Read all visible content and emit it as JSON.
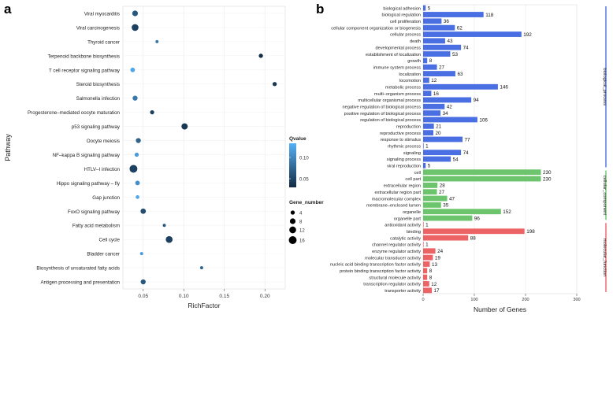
{
  "chart_data": [
    {
      "panel": "a",
      "type": "scatter",
      "xlabel": "RichFactor",
      "ylabel": "Pathway",
      "xlim": [
        0.025,
        0.225
      ],
      "xticks": [
        0.05,
        0.1,
        0.15,
        0.2
      ],
      "xtick_labels": [
        "0.05",
        "0.10",
        "0.15",
        "0.20"
      ],
      "legend_color": {
        "title": "Qvalue",
        "ticks": [
          "0.10",
          "0.05"
        ],
        "colors": [
          "#56B1F7",
          "#132B43"
        ]
      },
      "legend_size": {
        "title": "Gene_number",
        "labels": [
          "4",
          "8",
          "12",
          "16"
        ],
        "values": [
          4,
          8,
          12,
          16
        ]
      },
      "pathways": [
        "Viral myocarditis",
        "Viral carcinogenesis",
        "Thyroid cancer",
        "Terpenoid backbone biosynthesis",
        "T cell receptor signaling pathway",
        "Steroid biosynthesis",
        "Salmonella infection",
        "Progesterone–mediated oocyte maturation",
        "p53 signaling pathway",
        "Oocyte meiosis",
        "NF–kappa B signaling pathway",
        "HTLV–I infection",
        "Hippo signaling pathway – fly",
        "Gap junction",
        "FoxO signaling pathway",
        "Fatty acid metabolism",
        "Cell cycle",
        "Bladder cancer",
        "Biosynthesis of unsaturated fatty acids",
        "Antigen processing and presentation"
      ],
      "points": [
        {
          "x": 0.04,
          "genes": 8,
          "q": 0.05
        },
        {
          "x": 0.04,
          "genes": 12,
          "q": 0.03
        },
        {
          "x": 0.067,
          "genes": 2,
          "q": 0.08
        },
        {
          "x": 0.195,
          "genes": 4,
          "q": 0.01
        },
        {
          "x": 0.037,
          "genes": 5,
          "q": 0.12
        },
        {
          "x": 0.212,
          "genes": 4,
          "q": 0.02
        },
        {
          "x": 0.04,
          "genes": 6,
          "q": 0.08
        },
        {
          "x": 0.061,
          "genes": 4,
          "q": 0.03
        },
        {
          "x": 0.101,
          "genes": 10,
          "q": 0.02
        },
        {
          "x": 0.044,
          "genes": 6,
          "q": 0.06
        },
        {
          "x": 0.042,
          "genes": 4,
          "q": 0.11
        },
        {
          "x": 0.038,
          "genes": 16,
          "q": 0.03
        },
        {
          "x": 0.043,
          "genes": 5,
          "q": 0.1
        },
        {
          "x": 0.043,
          "genes": 3,
          "q": 0.12
        },
        {
          "x": 0.05,
          "genes": 7,
          "q": 0.04
        },
        {
          "x": 0.076,
          "genes": 2,
          "q": 0.05
        },
        {
          "x": 0.082,
          "genes": 12,
          "q": 0.03
        },
        {
          "x": 0.048,
          "genes": 2,
          "q": 0.11
        },
        {
          "x": 0.122,
          "genes": 2,
          "q": 0.06
        },
        {
          "x": 0.05,
          "genes": 6,
          "q": 0.05
        }
      ]
    },
    {
      "panel": "b",
      "type": "bar",
      "orientation": "horizontal",
      "xlabel": "Number of Genes",
      "xlim": [
        0,
        300
      ],
      "xticks": [
        0,
        100,
        200,
        300
      ],
      "xtick_labels": [
        "0",
        "100",
        "200",
        "300"
      ],
      "categories": [
        "biological adhesion",
        "biological regulation",
        "cell proliferation",
        "cellular component organization or biogenesis",
        "cellular process",
        "death",
        "developmental process",
        "establishment of localization",
        "growth",
        "immune system process",
        "localization",
        "locomotion",
        "metabolic process",
        "multi–organism process",
        "multicellular organismal process",
        "negative regulation of biological process",
        "positive regulation of biological process",
        "regulation of biological process",
        "reproduction",
        "reproductive process",
        "response to stimulus",
        "rhythmic process",
        "signaling",
        "signaling process",
        "viral reproduction",
        "cell",
        "cell part",
        "extracellular region",
        "extracellular region part",
        "macromolecular complex",
        "membrane–enclosed lumen",
        "organelle",
        "organelle part",
        "antioxidant activity",
        "binding",
        "catalytic activity",
        "channel regulator activity",
        "enzyme regulator activity",
        "molecular transducer activity",
        "nucleic acid binding transcription factor activity",
        "protein binding transcription factor activity",
        "structural molecule activity",
        "transcription regulator activity",
        "transporter activity"
      ],
      "values": [
        5,
        118,
        36,
        62,
        192,
        43,
        74,
        53,
        8,
        27,
        63,
        12,
        146,
        16,
        94,
        42,
        34,
        106,
        21,
        20,
        77,
        1,
        74,
        54,
        5,
        230,
        230,
        28,
        27,
        47,
        35,
        152,
        96,
        1,
        198,
        88,
        1,
        24,
        19,
        13,
        8,
        8,
        12,
        17
      ],
      "groups": [
        {
          "name": "biological_process",
          "count": 25,
          "color": "#4A6FE3"
        },
        {
          "name": "cellular_component",
          "count": 8,
          "color": "#6CC56C"
        },
        {
          "name": "molecular_function",
          "count": 11,
          "color": "#EC6366"
        }
      ]
    }
  ],
  "labels": {
    "panel_a": "a",
    "panel_b": "b"
  }
}
